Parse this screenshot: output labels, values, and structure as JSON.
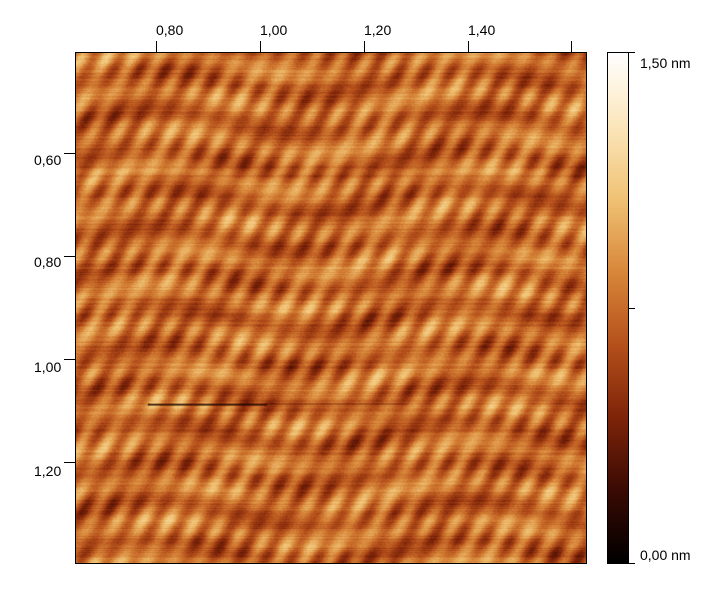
{
  "x_axis": {
    "ticks": [
      "0,80",
      "1,00",
      "1,20",
      "1,40"
    ]
  },
  "y_axis": {
    "ticks": [
      "0,60",
      "0,80",
      "1,00",
      "1,20"
    ]
  },
  "colorbar": {
    "max_label": "1,50 nm",
    "min_label": "0,00 nm",
    "colors": [
      "#000000",
      "#3a0a03",
      "#7e2409",
      "#b5501b",
      "#d8873a",
      "#f0c274",
      "#fbe6bb",
      "#ffffff"
    ]
  },
  "image": {
    "description_icon": "afm-height-map"
  }
}
